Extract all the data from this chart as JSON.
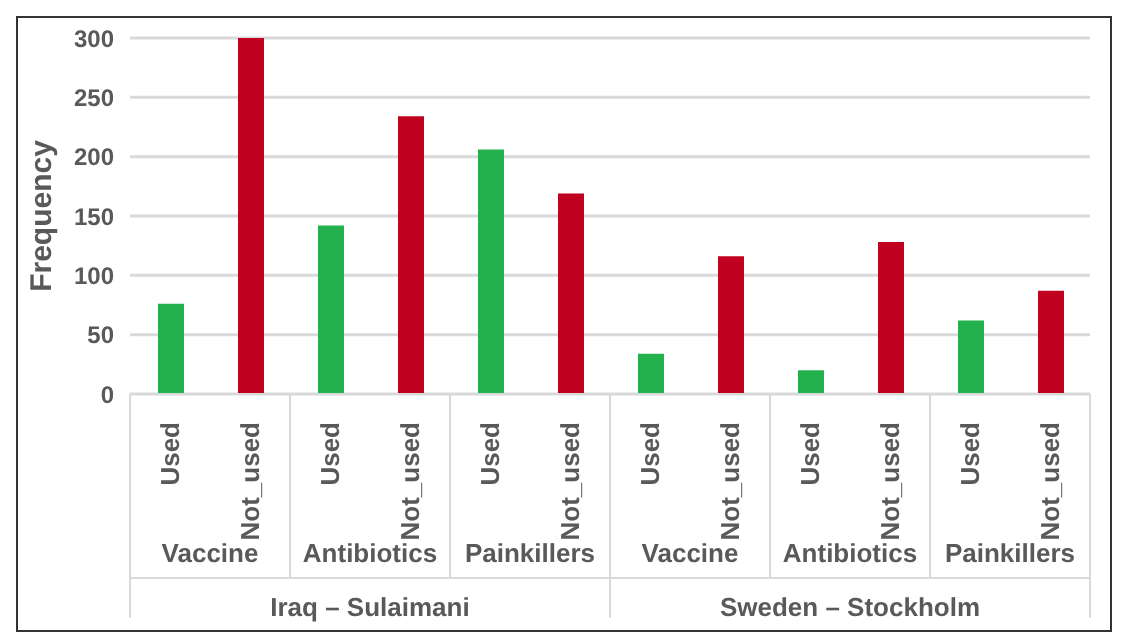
{
  "chart_data": {
    "type": "bar",
    "ylabel": "Frequency",
    "categories": [
      "Used",
      "Not_used",
      "Used",
      "Not_used",
      "Used",
      "Not_used",
      "Used",
      "Not_used",
      "Used",
      "Not_used",
      "Used",
      "Not_used"
    ],
    "values": [
      76,
      300,
      142,
      234,
      206,
      169,
      34,
      116,
      20,
      128,
      62,
      87
    ],
    "colors": [
      "#22b14c",
      "#c0001f",
      "#22b14c",
      "#c0001f",
      "#22b14c",
      "#c0001f",
      "#22b14c",
      "#c0001f",
      "#22b14c",
      "#c0001f",
      "#22b14c",
      "#c0001f"
    ],
    "ylim": [
      0,
      300
    ],
    "yticks": [
      0,
      50,
      100,
      150,
      200,
      250,
      300
    ],
    "grid": "y",
    "annotations": [
      "Vaccine",
      "Antibiotics",
      "Painkillers",
      "Vaccine",
      "Antibiotics",
      "Painkillers",
      "Iraq – Sulaimani",
      "Sweden – Stockholm"
    ]
  }
}
